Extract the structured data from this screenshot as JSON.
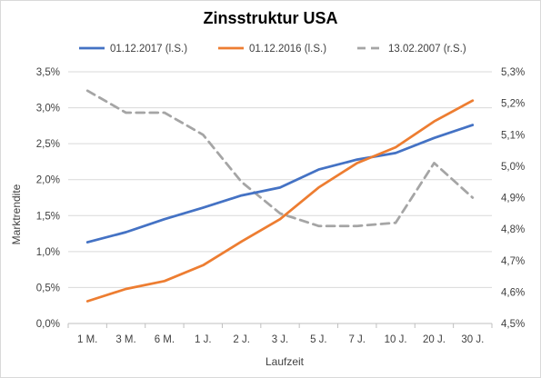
{
  "chart_data": {
    "type": "line",
    "title": "Zinsstruktur USA",
    "xlabel": "Laufzeit",
    "ylabel": "Marktrendite",
    "categories": [
      "1 M.",
      "3 M.",
      "6 M.",
      "1 J.",
      "2 J.",
      "3 J.",
      "5 J.",
      "7 J.",
      "10 J.",
      "20 J.",
      "30 J."
    ],
    "y_left": {
      "min": 0.0,
      "max": 3.5,
      "step": 0.5,
      "ticks": [
        "0,0%",
        "0,5%",
        "1,0%",
        "1,5%",
        "2,0%",
        "2,5%",
        "3,0%",
        "3,5%"
      ]
    },
    "y_right": {
      "min": 4.5,
      "max": 5.3,
      "step": 0.1,
      "ticks": [
        "4,5%",
        "4,6%",
        "4,7%",
        "4,8%",
        "4,9%",
        "5,0%",
        "5,1%",
        "5,2%",
        "5,3%"
      ]
    },
    "grid": "horizontal",
    "legend_position": "top",
    "series": [
      {
        "name": "01.12.2017 (l.S.)",
        "axis": "left",
        "color": "#4472c4",
        "dash": "solid",
        "values": [
          1.13,
          1.27,
          1.45,
          1.61,
          1.78,
          1.89,
          2.14,
          2.28,
          2.37,
          2.58,
          2.76
        ]
      },
      {
        "name": "01.12.2016 (l.S.)",
        "axis": "left",
        "color": "#ed7d31",
        "dash": "solid",
        "values": [
          0.31,
          0.48,
          0.59,
          0.81,
          1.14,
          1.45,
          1.89,
          2.23,
          2.45,
          2.81,
          3.1
        ]
      },
      {
        "name": "13.02.2007 (r.S.)",
        "axis": "right",
        "color": "#a5a5a5",
        "dash": "dashed",
        "values": [
          5.24,
          5.17,
          5.17,
          5.1,
          4.95,
          4.85,
          4.81,
          4.81,
          4.82,
          5.01,
          4.9
        ]
      }
    ]
  }
}
